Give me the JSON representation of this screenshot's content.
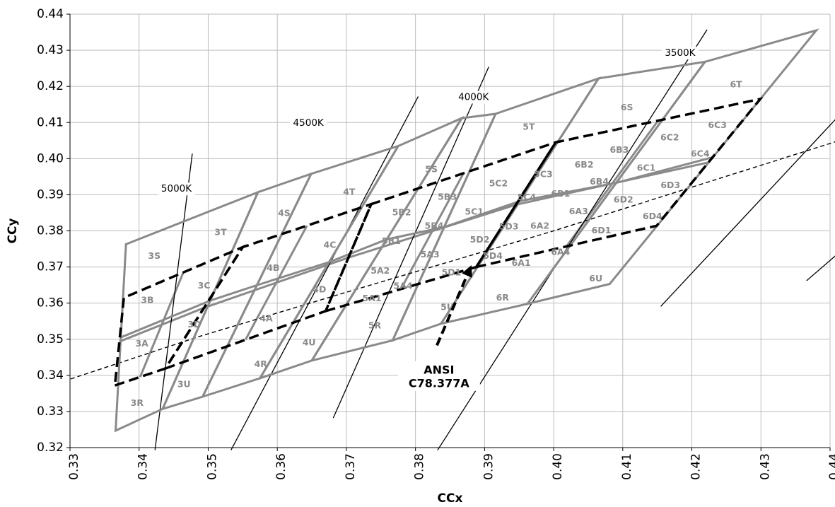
{
  "chart_data": {
    "type": "scatter",
    "title": "",
    "xlabel": "CCx",
    "ylabel": "CCy",
    "xlim": [
      0.33,
      0.44
    ],
    "ylim": [
      0.32,
      0.44
    ],
    "grid": true,
    "x_ticks": [
      "0.33",
      "0.34",
      "0.35",
      "0.36",
      "0.37",
      "0.38",
      "0.39",
      "0.40",
      "0.41",
      "0.42",
      "0.43",
      "0.44"
    ],
    "y_ticks": [
      "0.32",
      "0.33",
      "0.34",
      "0.35",
      "0.36",
      "0.37",
      "0.38",
      "0.39",
      "0.40",
      "0.41",
      "0.42",
      "0.43",
      "0.44"
    ],
    "cct_lines": [
      {
        "label": "5000K",
        "x": [
          0.3423,
          0.3477
        ],
        "y": [
          0.3193,
          0.4014
        ],
        "label_at": [
          0.3454,
          0.3916
        ]
      },
      {
        "label": "4500K",
        "x": [
          0.3533,
          0.3804
        ],
        "y": [
          0.3193,
          0.4172
        ],
        "label_at": [
          0.3645,
          0.4099
        ]
      },
      {
        "label": "4000K",
        "x": [
          0.3681,
          0.3906
        ],
        "y": [
          0.3282,
          0.4254
        ],
        "label_at": [
          0.3884,
          0.417
        ]
      },
      {
        "label": "3500K",
        "x": [
          0.3832,
          0.4222
        ],
        "y": [
          0.3193,
          0.4357
        ],
        "label_at": [
          0.4183,
          0.4292
        ]
      },
      {
        "label": "",
        "x": [
          0.4155,
          0.4411
        ],
        "y": [
          0.3591,
          0.4115
        ]
      },
      {
        "label": "",
        "x": [
          0.4366,
          0.4412
        ],
        "y": [
          0.3662,
          0.3738
        ]
      }
    ],
    "planckian_locus": {
      "x": [
        0.3301,
        0.3486,
        0.3682,
        0.4,
        0.442
      ],
      "y": [
        0.339,
        0.3507,
        0.362,
        0.38,
        0.4054
      ]
    },
    "quadrangles_3500_6500K": [
      [
        [
          0.3366,
          0.3247
        ],
        [
          0.3434,
          0.3307
        ],
        [
          0.3572,
          0.3907
        ],
        [
          0.3381,
          0.3763
        ]
      ],
      [
        [
          0.3434,
          0.3307
        ],
        [
          0.3492,
          0.3341
        ],
        [
          0.3649,
          0.3958
        ],
        [
          0.3572,
          0.3907
        ]
      ],
      [
        [
          0.3492,
          0.3341
        ],
        [
          0.3575,
          0.3392
        ],
        [
          0.3775,
          0.4035
        ],
        [
          0.3649,
          0.3958
        ]
      ],
      [
        [
          0.3575,
          0.3392
        ],
        [
          0.365,
          0.3441
        ],
        [
          0.3867,
          0.4112
        ],
        [
          0.3775,
          0.4035
        ]
      ],
      [
        [
          0.365,
          0.3441
        ],
        [
          0.3767,
          0.3497
        ],
        [
          0.3916,
          0.4124
        ],
        [
          0.3867,
          0.4112
        ]
      ],
      [
        [
          0.3767,
          0.3497
        ],
        [
          0.3837,
          0.3543
        ],
        [
          0.4065,
          0.4222
        ],
        [
          0.3916,
          0.4124
        ]
      ],
      [
        [
          0.3837,
          0.3543
        ],
        [
          0.3962,
          0.3598
        ],
        [
          0.4219,
          0.4268
        ],
        [
          0.4065,
          0.4222
        ]
      ],
      [
        [
          0.3962,
          0.3598
        ],
        [
          0.4081,
          0.3653
        ],
        [
          0.438,
          0.4355
        ],
        [
          0.4219,
          0.4268
        ]
      ]
    ],
    "ansi_quadrangles": [
      [
        [
          0.3365,
          0.3372
        ],
        [
          0.3438,
          0.3419
        ],
        [
          0.355,
          0.3755
        ],
        [
          0.3378,
          0.3615
        ]
      ],
      [
        [
          0.3438,
          0.3419
        ],
        [
          0.367,
          0.3578
        ],
        [
          0.3736,
          0.3874
        ],
        [
          0.355,
          0.3755
        ]
      ],
      [
        [
          0.367,
          0.3578
        ],
        [
          0.3888,
          0.37
        ],
        [
          0.4003,
          0.4045
        ],
        [
          0.3736,
          0.3874
        ]
      ],
      [
        [
          0.3888,
          0.37
        ],
        [
          0.4149,
          0.3814
        ],
        [
          0.4299,
          0.4165
        ],
        [
          0.4003,
          0.4045
        ]
      ]
    ],
    "annotation": {
      "line1": "ANSI",
      "line2": "C78.377A",
      "arrow_from": [
        0.3831,
        0.3483
      ],
      "arrow_to": [
        0.3881,
        0.3705
      ],
      "text_at": [
        0.3834,
        0.34
      ]
    },
    "labels": [
      {
        "text": "3S",
        "x": 0.3422,
        "y": 0.373
      },
      {
        "text": "3T",
        "x": 0.3518,
        "y": 0.3795
      },
      {
        "text": "3C",
        "x": 0.3494,
        "y": 0.3647
      },
      {
        "text": "3B",
        "x": 0.3412,
        "y": 0.3607
      },
      {
        "text": "3D",
        "x": 0.348,
        "y": 0.354
      },
      {
        "text": "3A",
        "x": 0.3404,
        "y": 0.3487
      },
      {
        "text": "3U",
        "x": 0.3465,
        "y": 0.3374
      },
      {
        "text": "3R",
        "x": 0.3397,
        "y": 0.3322
      },
      {
        "text": "4S",
        "x": 0.361,
        "y": 0.3848
      },
      {
        "text": "4T",
        "x": 0.3704,
        "y": 0.3907
      },
      {
        "text": "4C",
        "x": 0.3676,
        "y": 0.376
      },
      {
        "text": "4B",
        "x": 0.3594,
        "y": 0.3696
      },
      {
        "text": "4D",
        "x": 0.3661,
        "y": 0.3637
      },
      {
        "text": "4A",
        "x": 0.3584,
        "y": 0.3556
      },
      {
        "text": "4U",
        "x": 0.3646,
        "y": 0.349
      },
      {
        "text": "4R",
        "x": 0.3576,
        "y": 0.343
      },
      {
        "text": "5S",
        "x": 0.3823,
        "y": 0.3969
      },
      {
        "text": "5T",
        "x": 0.3964,
        "y": 0.4087
      },
      {
        "text": "5B3",
        "x": 0.3846,
        "y": 0.3893
      },
      {
        "text": "5C2",
        "x": 0.392,
        "y": 0.393
      },
      {
        "text": "5C3",
        "x": 0.3985,
        "y": 0.3956
      },
      {
        "text": "5B2",
        "x": 0.378,
        "y": 0.385
      },
      {
        "text": "5C1",
        "x": 0.3885,
        "y": 0.3852
      },
      {
        "text": "5C4",
        "x": 0.3961,
        "y": 0.3892
      },
      {
        "text": "5B4",
        "x": 0.3827,
        "y": 0.3813
      },
      {
        "text": "5D3",
        "x": 0.3935,
        "y": 0.3811
      },
      {
        "text": "5B1",
        "x": 0.3765,
        "y": 0.3771
      },
      {
        "text": "5D2",
        "x": 0.3893,
        "y": 0.3775
      },
      {
        "text": "5A3",
        "x": 0.3821,
        "y": 0.3733
      },
      {
        "text": "5A2",
        "x": 0.3749,
        "y": 0.3688
      },
      {
        "text": "5D4",
        "x": 0.3912,
        "y": 0.373
      },
      {
        "text": "5D1",
        "x": 0.3852,
        "y": 0.3684
      },
      {
        "text": "5A4",
        "x": 0.3782,
        "y": 0.3646
      },
      {
        "text": "5A1",
        "x": 0.3737,
        "y": 0.3612
      },
      {
        "text": "5U",
        "x": 0.3846,
        "y": 0.3588
      },
      {
        "text": "5R",
        "x": 0.3741,
        "y": 0.3537
      },
      {
        "text": "6S",
        "x": 0.4106,
        "y": 0.4141
      },
      {
        "text": "6T",
        "x": 0.4264,
        "y": 0.4204
      },
      {
        "text": "6C3",
        "x": 0.4237,
        "y": 0.4092
      },
      {
        "text": "6B3",
        "x": 0.4095,
        "y": 0.4023
      },
      {
        "text": "6C2",
        "x": 0.4168,
        "y": 0.4057
      },
      {
        "text": "6B2",
        "x": 0.4044,
        "y": 0.3982
      },
      {
        "text": "6C4",
        "x": 0.4212,
        "y": 0.4012
      },
      {
        "text": "6C1",
        "x": 0.4134,
        "y": 0.3973
      },
      {
        "text": "6B1",
        "x": 0.401,
        "y": 0.3902
      },
      {
        "text": "6B4",
        "x": 0.4066,
        "y": 0.3935
      },
      {
        "text": "6D3",
        "x": 0.4169,
        "y": 0.3925
      },
      {
        "text": "6A3",
        "x": 0.4036,
        "y": 0.3853
      },
      {
        "text": "6D2",
        "x": 0.4101,
        "y": 0.3885
      },
      {
        "text": "6A2",
        "x": 0.398,
        "y": 0.3813
      },
      {
        "text": "6D1",
        "x": 0.4069,
        "y": 0.38
      },
      {
        "text": "6D4",
        "x": 0.4143,
        "y": 0.3839
      },
      {
        "text": "6A4",
        "x": 0.401,
        "y": 0.374
      },
      {
        "text": "6A1",
        "x": 0.3953,
        "y": 0.371
      },
      {
        "text": "6U",
        "x": 0.4061,
        "y": 0.3667
      },
      {
        "text": "6R",
        "x": 0.3926,
        "y": 0.3614
      }
    ]
  }
}
